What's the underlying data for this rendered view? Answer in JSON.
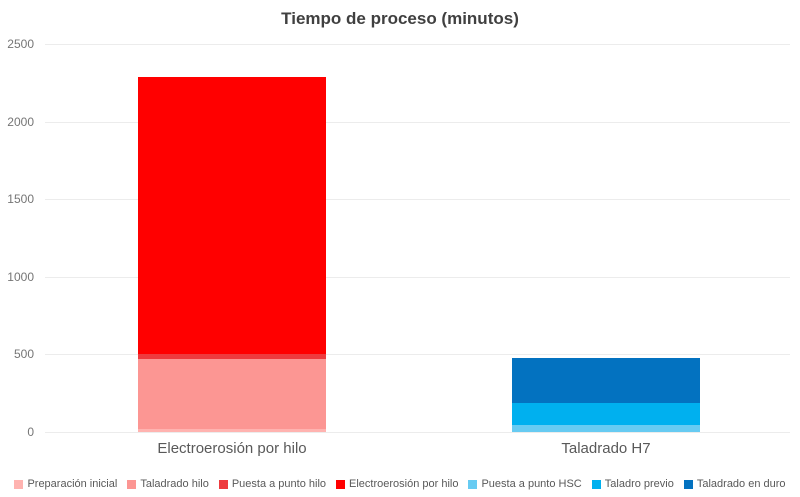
{
  "chart_data": {
    "type": "bar",
    "stacked": true,
    "title": "Tiempo de proceso (minutos)",
    "categories": [
      "Electroerosión por hilo",
      "Taladrado H7"
    ],
    "series": [
      {
        "name": "Preparación inicial",
        "color": "#ffb3b0",
        "values": [
          20,
          0
        ]
      },
      {
        "name": "Taladrado hilo",
        "color": "#fc9693",
        "values": [
          450,
          0
        ]
      },
      {
        "name": "Puesta a punto hilo",
        "color": "#ee3b3e",
        "values": [
          30,
          0
        ]
      },
      {
        "name": "Electroerosión por hilo",
        "color": "#ff0000",
        "values": [
          1790,
          0
        ]
      },
      {
        "name": "Puesta a punto HSC",
        "color": "#67cbf2",
        "values": [
          0,
          45
        ]
      },
      {
        "name": "Taladro previo",
        "color": "#00b0ef",
        "values": [
          0,
          145
        ]
      },
      {
        "name": "Taladrado en duro",
        "color": "#0372c0",
        "values": [
          0,
          290
        ]
      }
    ],
    "xlabel": "",
    "ylabel": "",
    "ylim": [
      0,
      2500
    ],
    "yticks": [
      0,
      500,
      1000,
      1500,
      2000,
      2500
    ],
    "grid": true,
    "legend_position": "bottom",
    "grid_color": "#ececec",
    "tick_label_color": "#757575",
    "category_label_color": "#595959",
    "legend_text_color": "#595959",
    "title_color": "#404040",
    "background_color": "#ffffff"
  }
}
